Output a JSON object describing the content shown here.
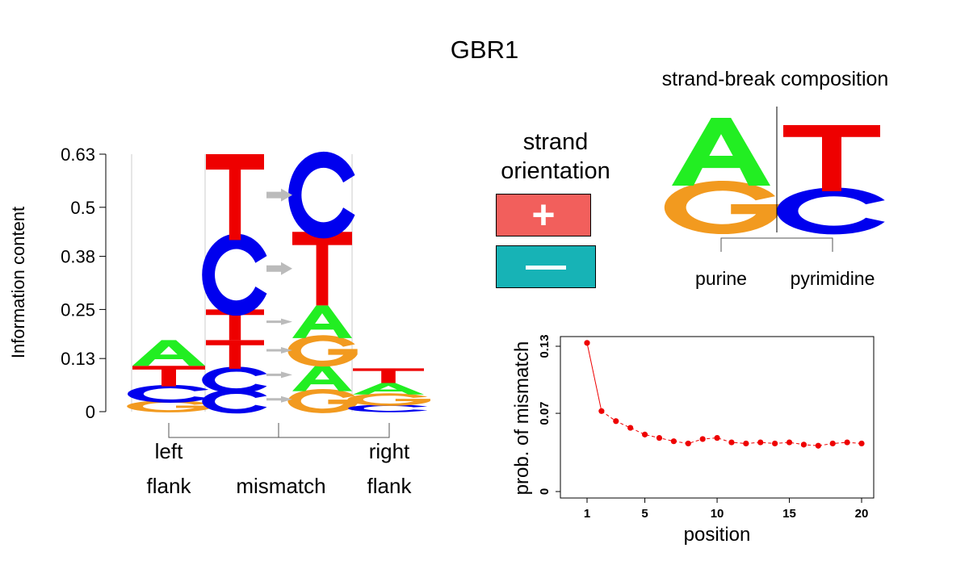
{
  "title": "GBR1",
  "logo": {
    "ylabel": "Information content",
    "yticks": [
      0,
      0.13,
      0.25,
      0.38,
      0.5,
      0.63
    ],
    "ylim": [
      0,
      0.63
    ],
    "groups": [
      {
        "label_lines": [
          "left",
          "flank"
        ]
      },
      {
        "label_lines": [
          "",
          "mismatch"
        ]
      },
      {
        "label_lines": [
          "right",
          "flank"
        ]
      }
    ],
    "columns": [
      {
        "group": "left",
        "letters": [
          {
            "l": "G",
            "v": 0.025
          },
          {
            "l": "C",
            "v": 0.037
          },
          {
            "l": "T",
            "v": 0.05
          },
          {
            "l": "A",
            "v": 0.063
          }
        ]
      },
      {
        "group": "mismatch-ref",
        "letters": [
          {
            "l": "C",
            "v": 0.05
          },
          {
            "l": "C",
            "v": 0.055
          },
          {
            "l": "T",
            "v": 0.07
          },
          {
            "l": "T",
            "v": 0.075
          },
          {
            "l": "C",
            "v": 0.17
          },
          {
            "l": "T",
            "v": 0.21
          }
        ]
      },
      {
        "group": "mismatch-alt",
        "letters": [
          {
            "l": "G",
            "v": 0.05
          },
          {
            "l": "A",
            "v": 0.065
          },
          {
            "l": "G",
            "v": 0.065
          },
          {
            "l": "A",
            "v": 0.08
          },
          {
            "l": "T",
            "v": 0.18
          },
          {
            "l": "C",
            "v": 0.18
          }
        ]
      },
      {
        "group": "right",
        "letters": [
          {
            "l": "C",
            "v": 0.016
          },
          {
            "l": "G",
            "v": 0.026
          },
          {
            "l": "A",
            "v": 0.028
          },
          {
            "l": "T",
            "v": 0.036
          }
        ]
      }
    ],
    "arrow_levels": [
      0.03,
      0.09,
      0.15,
      0.22,
      0.35,
      0.53
    ]
  },
  "strand": {
    "title_lines": [
      "strand",
      "orientation"
    ],
    "plus": "+",
    "minus": "—",
    "plus_color": "#f25f5c",
    "minus_color": "#17b3b6"
  },
  "strand_break": {
    "title": "strand-break composition",
    "purine_label": "purine",
    "pyrimidine_label": "pyrimidine",
    "purine": [
      {
        "l": "G",
        "v": 0.24
      },
      {
        "l": "A",
        "v": 0.36
      }
    ],
    "pyrimidine": [
      {
        "l": "C",
        "v": 0.27
      },
      {
        "l": "T",
        "v": 0.45
      }
    ]
  },
  "colors": {
    "A": "#22ee22",
    "C": "#0000ee",
    "G": "#f29a1f",
    "T": "#ee0000",
    "arrow": "#bbbbbb"
  },
  "chart_data": {
    "type": "line",
    "xlabel": "position",
    "ylabel": "prob. of mismatch",
    "xticks": [
      1,
      5,
      10,
      15,
      20
    ],
    "yticks": [
      0,
      0.07,
      0.13
    ],
    "ytick_labels": [
      "0",
      "0.07",
      "0.13"
    ],
    "xlim": [
      0,
      21
    ],
    "ylim": [
      0,
      0.14
    ],
    "x": [
      1,
      2,
      3,
      4,
      5,
      6,
      7,
      8,
      9,
      10,
      11,
      12,
      13,
      14,
      15,
      16,
      17,
      18,
      19,
      20
    ],
    "y": [
      0.133,
      0.072,
      0.063,
      0.057,
      0.051,
      0.048,
      0.045,
      0.043,
      0.047,
      0.048,
      0.044,
      0.043,
      0.044,
      0.043,
      0.044,
      0.042,
      0.041,
      0.043,
      0.044,
      0.043
    ],
    "color": "#ee0000"
  }
}
